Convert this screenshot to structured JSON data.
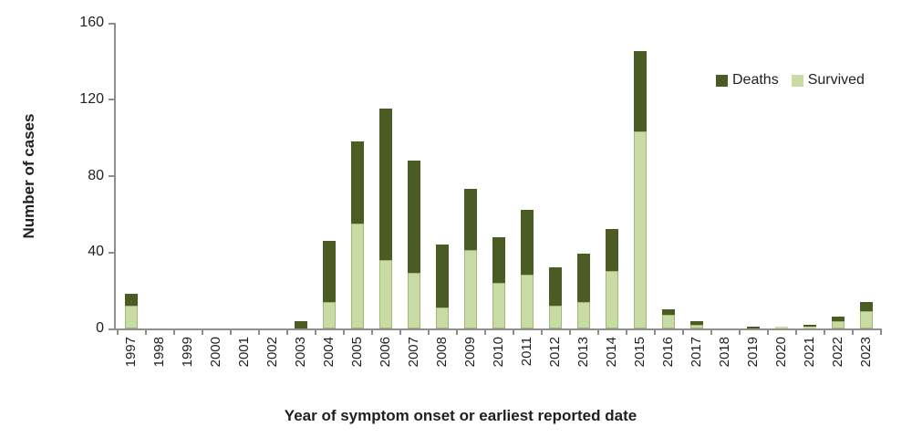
{
  "chart_data": {
    "type": "bar",
    "subtype": "stacked-vertical",
    "title": "",
    "xlabel": "Year of symptom onset or earliest reported date",
    "ylabel": "Number of cases",
    "ylim": [
      0,
      160
    ],
    "y_ticks": [
      0,
      40,
      80,
      120,
      160
    ],
    "grid": "off",
    "legend_position": "top-right",
    "categories": [
      "1997",
      "1998",
      "1999",
      "2000",
      "2001",
      "2002",
      "2003",
      "2004",
      "2005",
      "2006",
      "2007",
      "2008",
      "2009",
      "2010",
      "2011",
      "2012",
      "2013",
      "2014",
      "2015",
      "2016",
      "2017",
      "2018",
      "2019",
      "2020",
      "2021",
      "2022",
      "2023"
    ],
    "series": [
      {
        "name": "Deaths",
        "color": "#4a5c23",
        "stack_position": "top",
        "values": [
          6,
          0,
          0,
          0,
          0,
          0,
          4,
          32,
          43,
          79,
          59,
          33,
          32,
          24,
          34,
          20,
          25,
          22,
          42,
          3,
          2,
          0,
          1,
          0,
          1,
          2,
          5
        ]
      },
      {
        "name": "Survived",
        "color": "#c9dba4",
        "stack_position": "bottom",
        "values": [
          12,
          0,
          0,
          0,
          0,
          0,
          0,
          14,
          55,
          36,
          29,
          11,
          41,
          24,
          28,
          12,
          14,
          30,
          103,
          7,
          2,
          0,
          0,
          1,
          1,
          4,
          9
        ]
      }
    ],
    "totals": [
      18,
      0,
      0,
      0,
      0,
      0,
      4,
      46,
      98,
      115,
      88,
      44,
      73,
      48,
      62,
      32,
      39,
      52,
      145,
      10,
      4,
      0,
      1,
      1,
      2,
      6,
      14
    ]
  },
  "colors": {
    "deaths": "#4a5c23",
    "survived": "#c9dba4",
    "axis": "#8e8e8e",
    "text": "#1f1f1f"
  },
  "legend": {
    "deaths_label": "Deaths",
    "survived_label": "Survived"
  },
  "axes": {
    "y_title": "Number of cases",
    "x_title": "Year of symptom onset or earliest reported date",
    "y_tick_labels": [
      "0",
      "40",
      "80",
      "120",
      "160"
    ]
  }
}
